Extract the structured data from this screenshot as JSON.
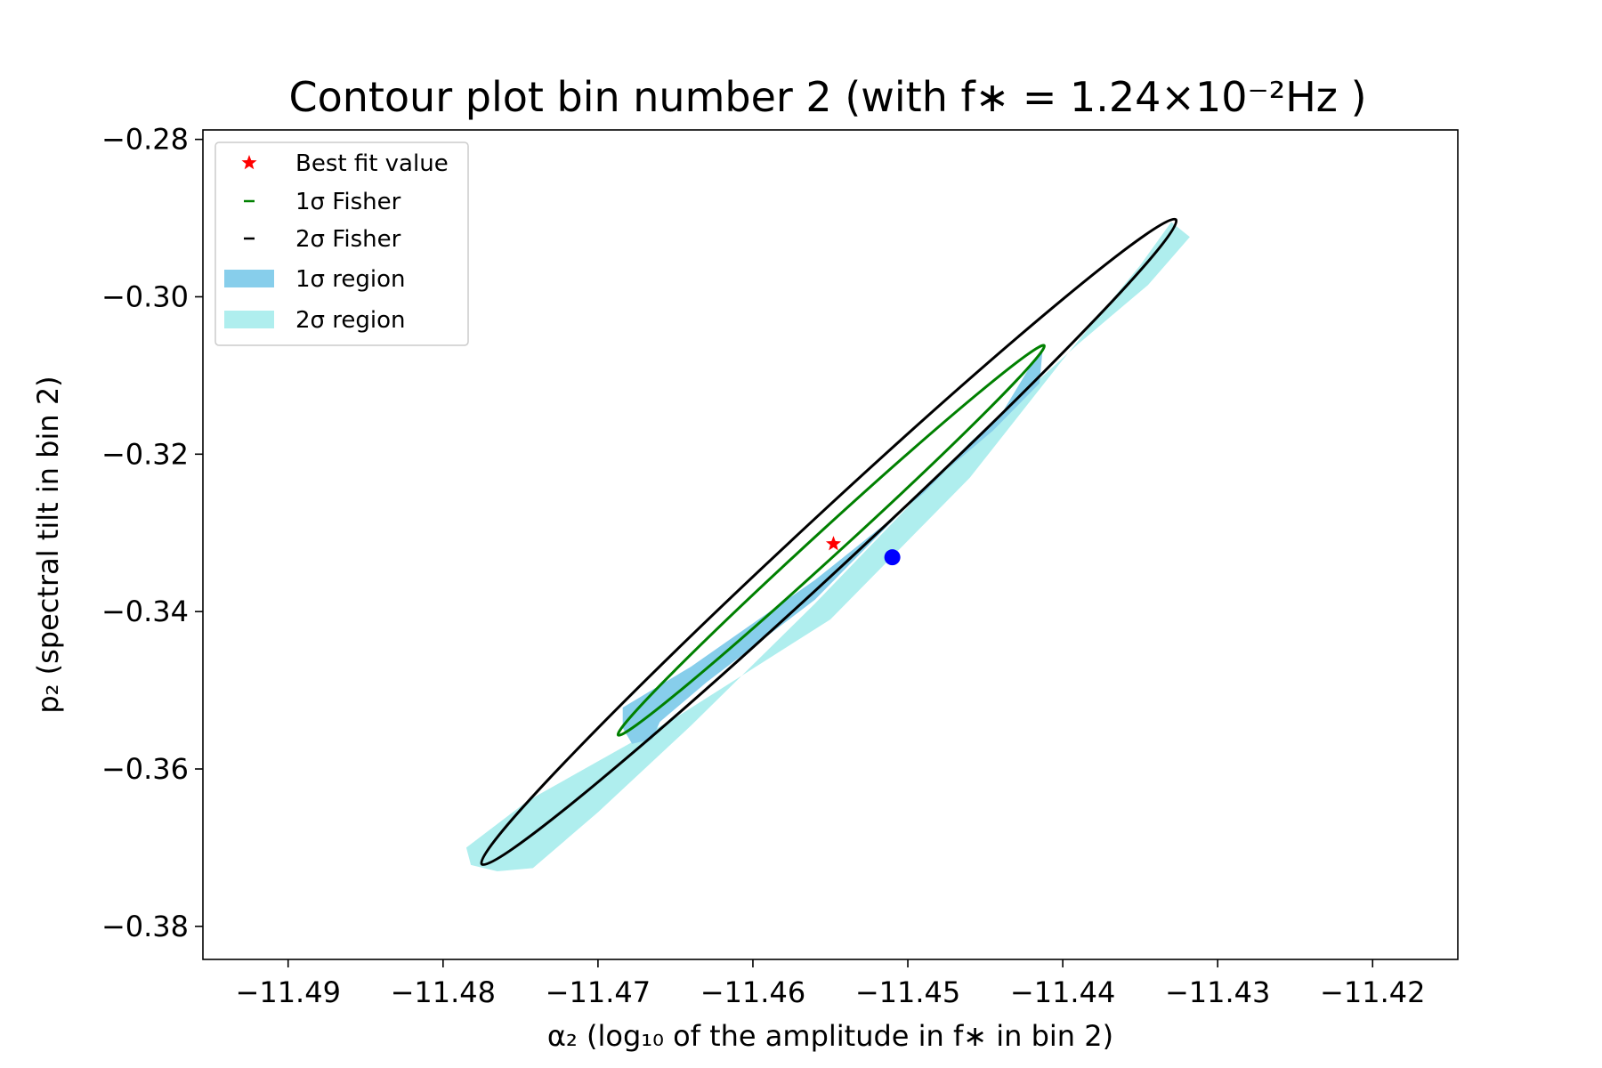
{
  "chart_data": {
    "type": "contour",
    "title": "Contour plot bin number 2 (with f∗ = 1.24×10⁻²Hz )",
    "xlabel": "α₂ (log₁₀ of the amplitude in f∗ in bin 2)",
    "ylabel": "p₂ (spectral tilt in bin 2)",
    "xlim": [
      -11.4955,
      -11.4145
    ],
    "ylim": [
      -0.3842,
      -0.2788
    ],
    "xticks": [
      -11.49,
      -11.48,
      -11.47,
      -11.46,
      -11.45,
      -11.44,
      -11.43,
      -11.42
    ],
    "xtick_labels": [
      "−11.49",
      "−11.48",
      "−11.47",
      "−11.46",
      "−11.45",
      "−11.44",
      "−11.43",
      "−11.42"
    ],
    "yticks": [
      -0.28,
      -0.3,
      -0.32,
      -0.34,
      -0.36,
      -0.38
    ],
    "ytick_labels": [
      "−0.28",
      "−0.30",
      "−0.32",
      "−0.34",
      "−0.36",
      "−0.38"
    ],
    "grid": false,
    "legend": {
      "position": "top-left",
      "entries": [
        {
          "label": "Best fit value",
          "kind": "marker-star",
          "color": "#ff0000"
        },
        {
          "label": "1σ Fisher",
          "kind": "line",
          "color": "#008000"
        },
        {
          "label": "2σ Fisher",
          "kind": "line",
          "color": "#000000"
        },
        {
          "label": "1σ region",
          "kind": "patch",
          "color": "#87ceeb"
        },
        {
          "label": "2σ region",
          "kind": "patch",
          "color": "#afeeee"
        }
      ]
    },
    "best_fit": {
      "x": -11.4548,
      "y": -0.3314,
      "color": "#ff0000"
    },
    "fiducial_point": {
      "x": -11.451,
      "y": -0.3331,
      "color": "#0000ff"
    },
    "fisher_ellipses": [
      {
        "name": "1σ Fisher",
        "center": [
          -11.455,
          -0.3311
        ],
        "extremes": [
          [
            -11.4687,
            -0.3557
          ],
          [
            -11.4412,
            -0.3062
          ]
        ],
        "half_width_y": 0.0023,
        "color": "#008000"
      },
      {
        "name": "2σ Fisher",
        "center": [
          -11.455,
          -0.3312
        ],
        "extremes": [
          [
            -11.4775,
            -0.3721
          ],
          [
            -11.4327,
            -0.2902
          ]
        ],
        "half_width_y": 0.0046,
        "color": "#000000"
      }
    ],
    "regions": [
      {
        "name": "1σ region",
        "color": "#87ceeb",
        "polygon": [
          [
            -11.4413,
            -0.3067
          ],
          [
            -11.4415,
            -0.311
          ],
          [
            -11.4445,
            -0.317
          ],
          [
            -11.449,
            -0.3245
          ],
          [
            -11.456,
            -0.3385
          ],
          [
            -11.463,
            -0.349
          ],
          [
            -11.466,
            -0.354
          ],
          [
            -11.4665,
            -0.3562
          ],
          [
            -11.4678,
            -0.3568
          ],
          [
            -11.4684,
            -0.3548
          ],
          [
            -11.4684,
            -0.3522
          ],
          [
            -11.464,
            -0.347
          ],
          [
            -11.456,
            -0.336
          ],
          [
            -11.449,
            -0.325
          ],
          [
            -11.444,
            -0.315
          ],
          [
            -11.442,
            -0.3085
          ]
        ]
      },
      {
        "name": "2σ region",
        "color": "#afeeee",
        "polygon": [
          [
            -11.4318,
            -0.2924
          ],
          [
            -11.4345,
            -0.2985
          ],
          [
            -11.439,
            -0.306
          ],
          [
            -11.446,
            -0.3185
          ],
          [
            -11.456,
            -0.339
          ],
          [
            -11.464,
            -0.3545
          ],
          [
            -11.47,
            -0.3655
          ],
          [
            -11.4742,
            -0.3726
          ],
          [
            -11.4765,
            -0.373
          ],
          [
            -11.4782,
            -0.3722
          ],
          [
            -11.4785,
            -0.37
          ],
          [
            -11.4745,
            -0.364
          ],
          [
            -11.465,
            -0.3535
          ],
          [
            -11.455,
            -0.341
          ],
          [
            -11.446,
            -0.323
          ],
          [
            -11.44,
            -0.308
          ],
          [
            -11.435,
            -0.296
          ],
          [
            -11.433,
            -0.2905
          ]
        ]
      }
    ]
  }
}
